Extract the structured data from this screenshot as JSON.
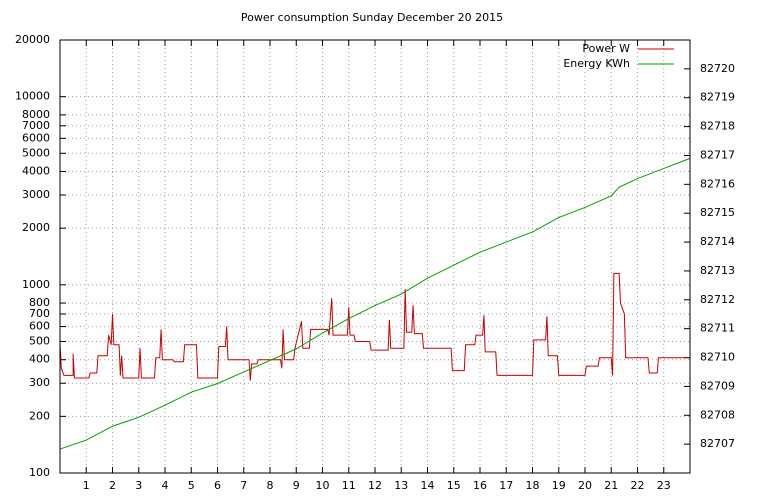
{
  "chart_data": {
    "type": "line",
    "title": "Power consumption Sunday December 20 2015",
    "log_y": true,
    "grid": true,
    "legend": "top right",
    "xlim": [
      0,
      24
    ],
    "xticks": [
      1,
      2,
      3,
      4,
      5,
      6,
      7,
      8,
      9,
      10,
      11,
      12,
      13,
      14,
      15,
      16,
      17,
      18,
      19,
      20,
      21,
      22,
      23
    ],
    "ylim": [
      100,
      20000
    ],
    "yticks": [
      100,
      200,
      300,
      400,
      500,
      600,
      700,
      800,
      1000,
      2000,
      3000,
      4000,
      5000,
      6000,
      7000,
      8000,
      10000,
      20000
    ],
    "y2lim": [
      82706,
      82721
    ],
    "y2ticks": [
      82707,
      82708,
      82709,
      82710,
      82711,
      82712,
      82713,
      82714,
      82715,
      82716,
      82717,
      82718,
      82719,
      82720
    ],
    "series": [
      {
        "name": "Power W",
        "color": "#cc0000",
        "x": [
          0,
          0.05,
          0.15,
          0.5,
          0.5,
          0.55,
          1.1,
          1.15,
          1.4,
          1.45,
          1.8,
          1.85,
          1.95,
          2.0,
          2.05,
          2.25,
          2.3,
          2.35,
          2.4,
          3.0,
          3.05,
          3.1,
          3.6,
          3.65,
          3.8,
          3.85,
          3.9,
          4.3,
          4.35,
          4.7,
          4.75,
          5.2,
          5.25,
          6.0,
          6.05,
          6.3,
          6.35,
          6.4,
          7.2,
          7.25,
          7.3,
          7.5,
          7.55,
          8.4,
          8.45,
          8.5,
          8.55,
          8.9,
          8.95,
          9.2,
          9.25,
          9.5,
          9.55,
          10.2,
          10.25,
          10.35,
          10.4,
          10.95,
          11.0,
          11.05,
          11.2,
          11.25,
          11.8,
          11.85,
          12.5,
          12.55,
          12.6,
          13.1,
          13.15,
          13.2,
          13.4,
          13.45,
          13.5,
          13.8,
          13.85,
          14.9,
          14.95,
          15.4,
          15.45,
          15.8,
          15.85,
          16.1,
          16.15,
          16.2,
          16.6,
          16.65,
          18.0,
          18.05,
          18.5,
          18.55,
          18.6,
          18.95,
          19.0,
          20.0,
          20.05,
          20.5,
          20.55,
          21.0,
          21.05,
          21.1,
          21.3,
          21.35,
          21.5,
          21.55,
          22.4,
          22.45,
          22.75,
          22.8,
          24.0
        ],
        "values": [
          490,
          360,
          330,
          330,
          430,
          320,
          320,
          340,
          340,
          420,
          420,
          540,
          480,
          700,
          480,
          480,
          330,
          420,
          320,
          320,
          460,
          320,
          320,
          410,
          410,
          580,
          400,
          400,
          390,
          390,
          480,
          480,
          320,
          320,
          470,
          470,
          600,
          400,
          400,
          310,
          380,
          380,
          400,
          400,
          360,
          580,
          400,
          400,
          460,
          640,
          460,
          460,
          580,
          580,
          540,
          850,
          540,
          540,
          760,
          540,
          540,
          500,
          500,
          450,
          450,
          650,
          460,
          460,
          950,
          560,
          560,
          780,
          550,
          550,
          460,
          460,
          350,
          350,
          480,
          480,
          540,
          540,
          690,
          440,
          440,
          330,
          330,
          510,
          510,
          680,
          420,
          420,
          330,
          330,
          370,
          370,
          410,
          410,
          330,
          1150,
          1150,
          800,
          700,
          410,
          410,
          340,
          340,
          410,
          410
        ]
      },
      {
        "name": "Energy KWh",
        "color": "#00a000",
        "axis": "y2",
        "x": [
          0,
          1,
          2,
          3,
          4,
          5,
          6,
          7,
          8,
          9,
          10,
          11,
          12,
          13,
          14,
          15,
          16,
          17,
          18,
          19,
          20,
          21,
          21.3,
          22,
          23,
          24
        ],
        "values": [
          82706.83,
          82707.14,
          82707.62,
          82707.93,
          82708.35,
          82708.8,
          82709.1,
          82709.5,
          82709.9,
          82710.3,
          82710.85,
          82711.35,
          82711.8,
          82712.2,
          82712.75,
          82713.2,
          82713.65,
          82714.0,
          82714.35,
          82714.85,
          82715.2,
          82715.6,
          82715.9,
          82716.2,
          82716.55,
          82716.9
        ]
      }
    ]
  }
}
